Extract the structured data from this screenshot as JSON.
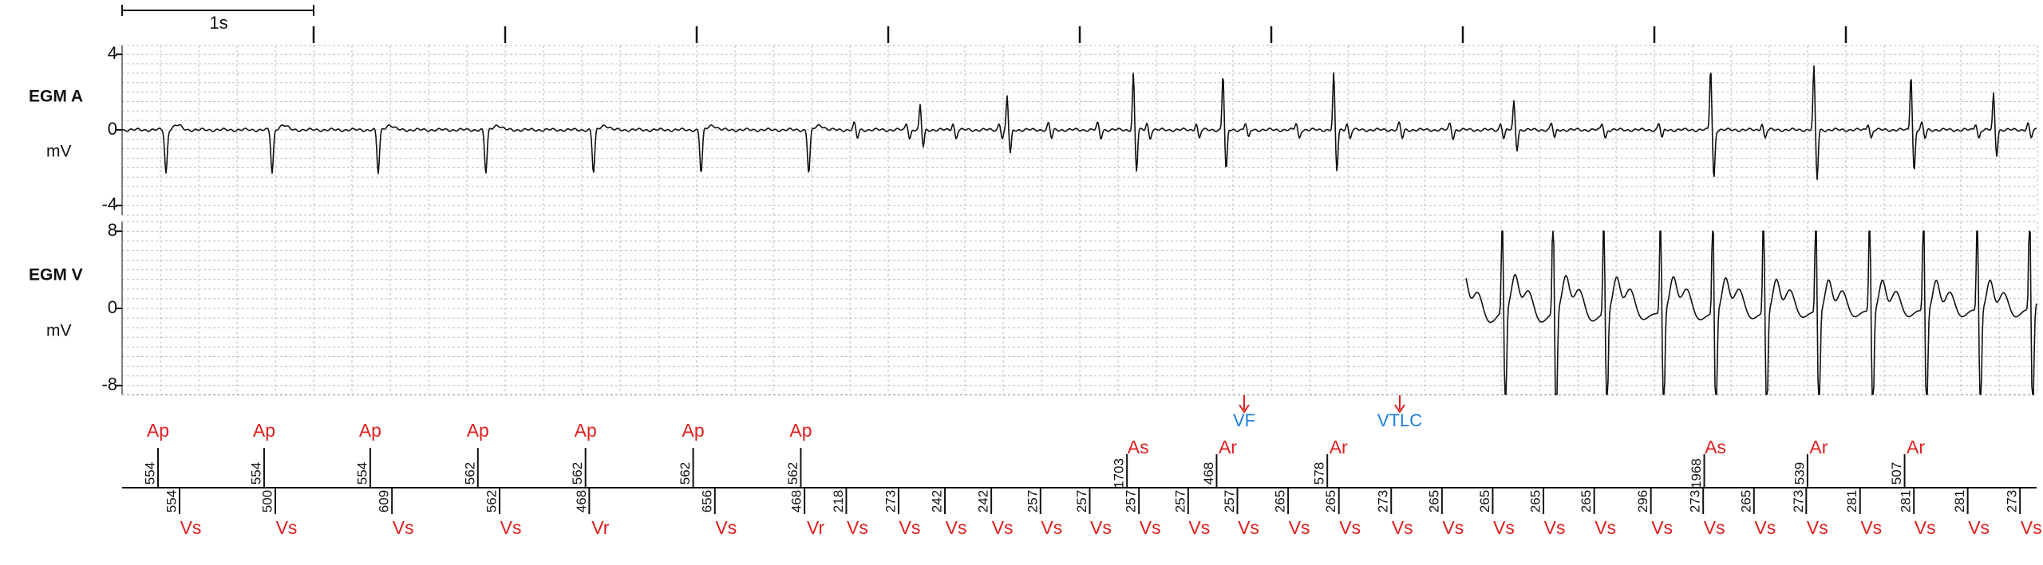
{
  "scale_bar": {
    "label": "1s"
  },
  "channels": [
    {
      "label": "EGM A",
      "unit": "mV",
      "yticks": [
        4,
        0,
        -4
      ]
    },
    {
      "label": "EGM V",
      "unit": "mV",
      "yticks": [
        8,
        0,
        -8
      ]
    }
  ],
  "atrial_markers": [
    {
      "label": "Ap",
      "interval": 554
    },
    {
      "label": "Ap",
      "interval": 554
    },
    {
      "label": "Ap",
      "interval": 554
    },
    {
      "label": "Ap",
      "interval": 562
    },
    {
      "label": "Ap",
      "interval": 562
    },
    {
      "label": "Ap",
      "interval": 562
    },
    {
      "label": "Ap",
      "interval": 562
    },
    {
      "label": "As",
      "interval": 1703
    },
    {
      "label": "Ar",
      "interval": 468
    },
    {
      "label": "Ar",
      "interval": 578
    },
    {
      "label": "As",
      "interval": 1968
    },
    {
      "label": "Ar",
      "interval": 539
    },
    {
      "label": "Ar",
      "interval": 507
    }
  ],
  "ventricular_markers": [
    {
      "label": "Vs",
      "interval": 554
    },
    {
      "label": "Vs",
      "interval": 500
    },
    {
      "label": "Vs",
      "interval": 609
    },
    {
      "label": "Vs",
      "interval": 562
    },
    {
      "label": "Vr",
      "interval": 468
    },
    {
      "label": "Vs",
      "interval": 656
    },
    {
      "label": "Vr",
      "interval": 468
    },
    {
      "label": "Vs",
      "interval": 218
    },
    {
      "label": "Vs",
      "interval": 273
    },
    {
      "label": "Vs",
      "interval": 242
    },
    {
      "label": "Vs",
      "interval": 242
    },
    {
      "label": "Vs",
      "interval": 257
    },
    {
      "label": "Vs",
      "interval": 257
    },
    {
      "label": "Vs",
      "interval": 257
    },
    {
      "label": "Vs",
      "interval": 257
    },
    {
      "label": "Vs",
      "interval": 257
    },
    {
      "label": "Vs",
      "interval": 265
    },
    {
      "label": "Vs",
      "interval": 265
    },
    {
      "label": "Vs",
      "interval": 273
    },
    {
      "label": "Vs",
      "interval": 265
    },
    {
      "label": "Vs",
      "interval": 265
    },
    {
      "label": "Vs",
      "interval": 265
    },
    {
      "label": "Vs",
      "interval": 265
    },
    {
      "label": "Vs",
      "interval": 296
    },
    {
      "label": "Vs",
      "interval": 273
    },
    {
      "label": "Vs",
      "interval": 265
    },
    {
      "label": "Vs",
      "interval": 273
    },
    {
      "label": "Vs",
      "interval": 281
    },
    {
      "label": "Vs",
      "interval": 281
    },
    {
      "label": "Vs",
      "interval": 281
    },
    {
      "label": "Vs",
      "interval": 273
    }
  ],
  "annotations": [
    {
      "label": "VF"
    },
    {
      "label": "VTLC"
    }
  ]
}
